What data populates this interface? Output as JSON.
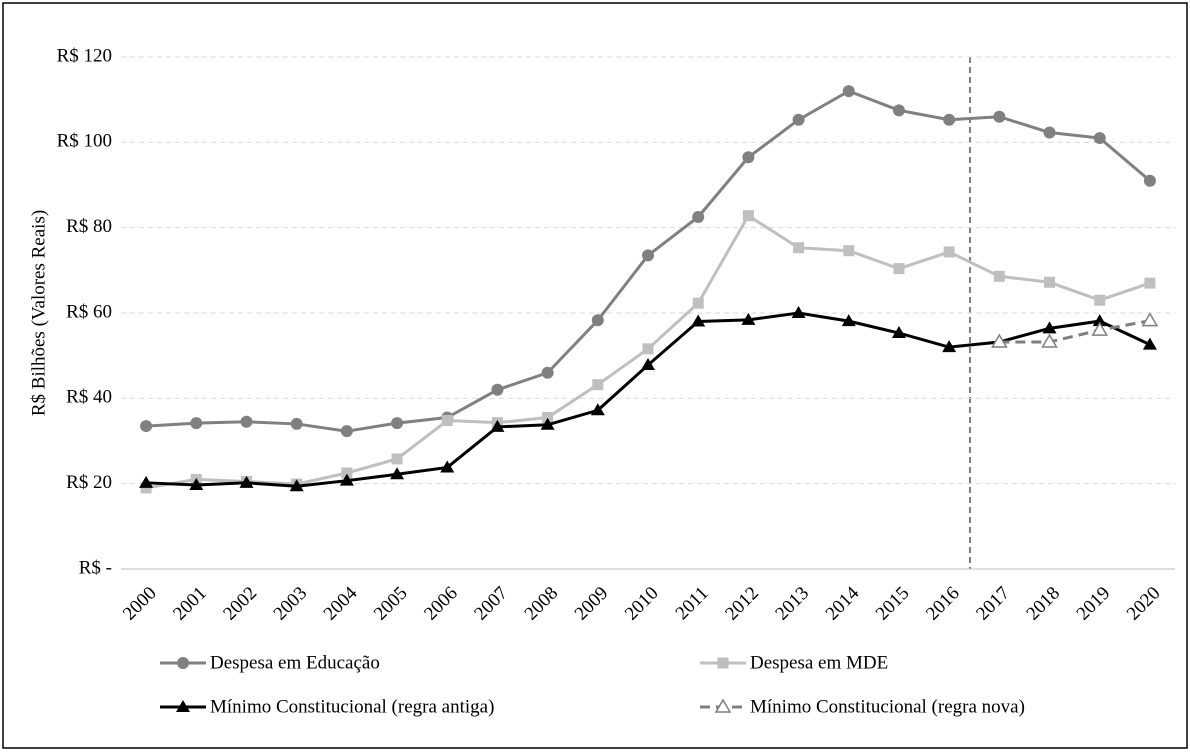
{
  "chart_data": {
    "type": "line",
    "y_label": "R$ Bilhões (Valores Reais)",
    "categories": [
      "2000",
      "2001",
      "2002",
      "2003",
      "2004",
      "2005",
      "2006",
      "2007",
      "2008",
      "2009",
      "2010",
      "2011",
      "2012",
      "2013",
      "2014",
      "2015",
      "2016",
      "2017",
      "2018",
      "2019",
      "2020"
    ],
    "series": [
      {
        "name": "Despesa em Educação",
        "color": "#808080",
        "marker": "circle",
        "dashed": false,
        "values": [
          33.5,
          34.2,
          34.5,
          34.0,
          32.3,
          34.2,
          35.5,
          42.0,
          46.0,
          58.3,
          73.5,
          82.5,
          96.5,
          105.3,
          112.0,
          107.5,
          105.3,
          106.0,
          102.3,
          101.0,
          91.0
        ]
      },
      {
        "name": "Despesa em MDE",
        "color": "#bfbfbf",
        "marker": "square",
        "dashed": false,
        "values": [
          19.0,
          21.0,
          20.5,
          19.9,
          22.5,
          25.8,
          34.8,
          34.3,
          35.5,
          43.2,
          51.6,
          62.3,
          82.8,
          75.3,
          74.6,
          70.4,
          74.3,
          68.6,
          67.2,
          63.0,
          67.0
        ]
      },
      {
        "name": "Mínimo Constitucional (regra antiga)",
        "color": "#000000",
        "marker": "triangle",
        "dashed": false,
        "values": [
          20.2,
          19.7,
          20.2,
          19.4,
          20.7,
          22.2,
          23.8,
          33.3,
          33.8,
          37.2,
          47.8,
          58.0,
          58.4,
          60.0,
          58.1,
          55.3,
          52.0,
          53.2,
          56.4,
          58.1,
          52.6
        ]
      },
      {
        "name": "Mínimo Constitucional (regra nova)",
        "color": "#7f7f7f",
        "marker": "open-triangle",
        "dashed": true,
        "values": [
          null,
          null,
          null,
          null,
          null,
          null,
          null,
          null,
          null,
          null,
          null,
          null,
          null,
          null,
          null,
          null,
          null,
          53.2,
          53.2,
          56.0,
          58.2
        ]
      }
    ],
    "ylim": [
      0,
      120
    ],
    "yticks": [
      {
        "value": 0,
        "label": "R$ -"
      },
      {
        "value": 20,
        "label": "R$ 20"
      },
      {
        "value": 40,
        "label": "R$ 40"
      },
      {
        "value": 60,
        "label": "R$ 60"
      },
      {
        "value": 80,
        "label": "R$ 80"
      },
      {
        "value": 100,
        "label": "R$ 100"
      },
      {
        "value": 120,
        "label": "R$ 120"
      }
    ],
    "grid": true
  }
}
